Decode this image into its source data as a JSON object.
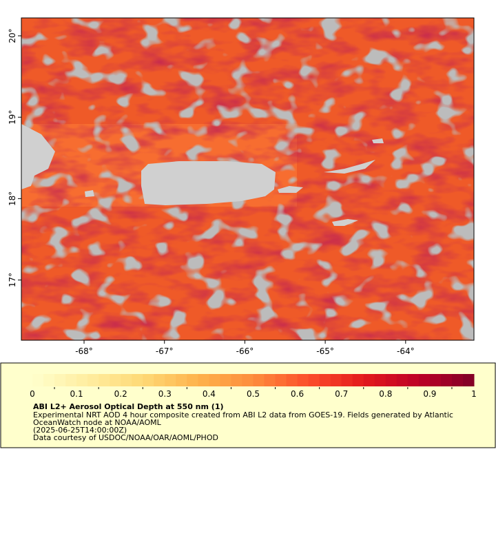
{
  "map": {
    "xlim": [
      -68.78,
      -63.15
    ],
    "ylim": [
      16.26,
      20.22
    ],
    "xticks": [
      {
        "value": -68,
        "label": "-68°"
      },
      {
        "value": -67,
        "label": "-67°"
      },
      {
        "value": -66,
        "label": "-66°"
      },
      {
        "value": -65,
        "label": "-65°"
      },
      {
        "value": -64,
        "label": "-64°"
      }
    ],
    "yticks": [
      {
        "value": 17,
        "label": "17°"
      },
      {
        "value": 18,
        "label": "18°"
      },
      {
        "value": 19,
        "label": "19°"
      },
      {
        "value": 20,
        "label": "20°"
      }
    ]
  },
  "colorbar": {
    "lim": [
      0,
      1
    ],
    "ticks": [
      0,
      0.1,
      0.2,
      0.3,
      0.4,
      0.5,
      0.6,
      0.7,
      0.8,
      0.9,
      1
    ],
    "colormap": [
      "#ffffcc",
      "#ffeda0",
      "#fed976",
      "#feb24c",
      "#fd8d3c",
      "#fc4e2a",
      "#e31a1c",
      "#bd0026",
      "#800026"
    ]
  },
  "legend": {
    "title": "ABI L2+ Aerosol Optical Depth at 550 nm (1)",
    "lines": [
      "Experimental NRT AOD 4 hour composite created from ABI L2 data from GOES-19. Fields generated by Atlantic",
      "OceanWatch node at NOAA/AOML",
      "(2025-06-25T14:00:00Z)",
      "Data courtesy of USDOC/NOAA/OAR/AOML/PHOD"
    ]
  }
}
